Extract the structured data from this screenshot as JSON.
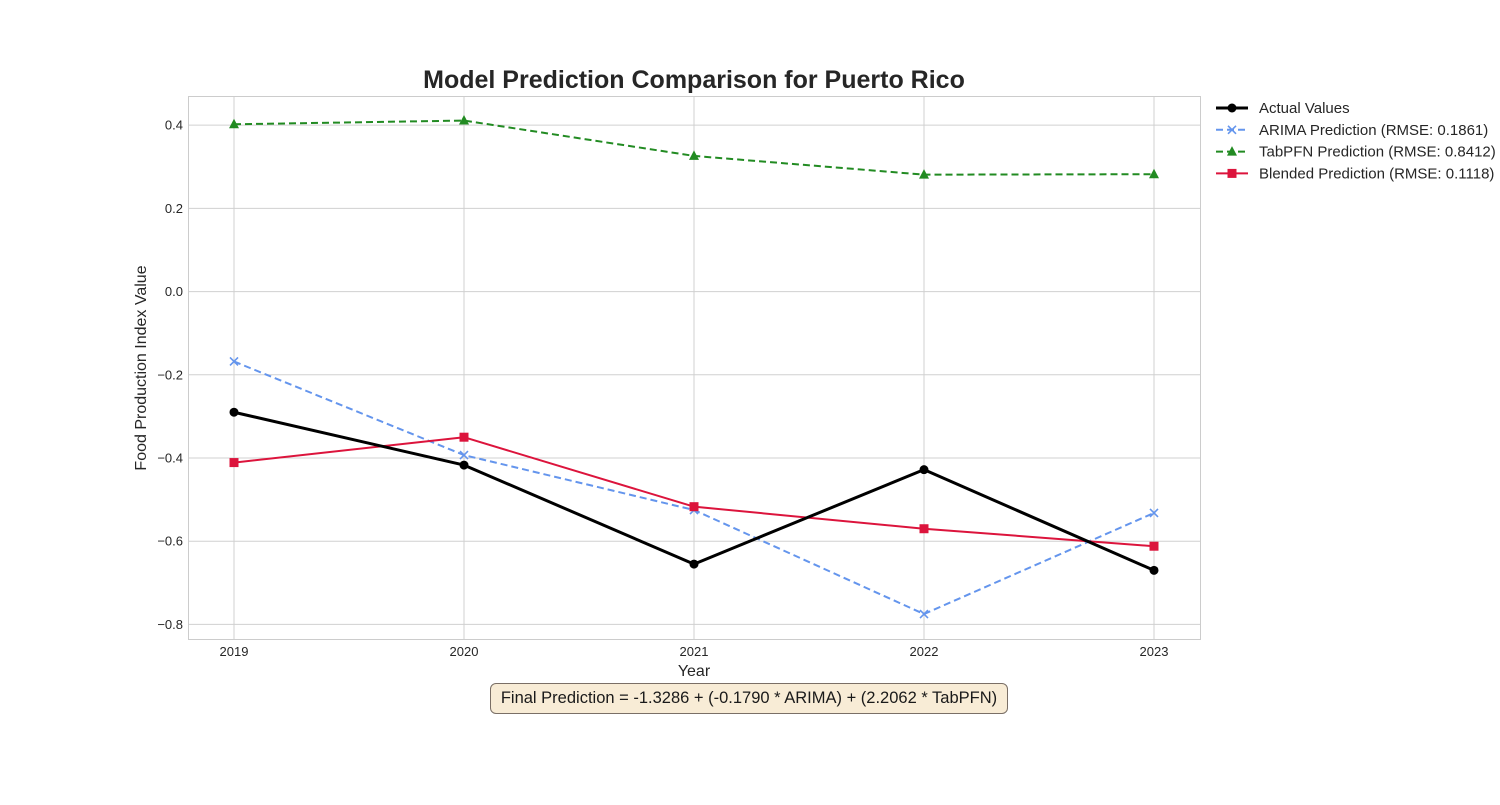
{
  "chart_data": {
    "type": "line",
    "title": "Model Prediction Comparison for Puerto Rico",
    "xlabel": "Year",
    "ylabel": "Food Production Index Value",
    "x": [
      "2019",
      "2020",
      "2021",
      "2022",
      "2023"
    ],
    "xlim": [
      2018.8,
      2023.2
    ],
    "ylim": [
      -0.835,
      0.47
    ],
    "yticks": [
      0.4,
      0.2,
      0.0,
      -0.2,
      -0.4,
      -0.6,
      -0.8
    ],
    "ytick_labels": [
      "0.4",
      "0.2",
      "0.0",
      "−0.2",
      "−0.4",
      "−0.6",
      "−0.8"
    ],
    "grid": true,
    "legend_position": "outside-top-right",
    "series": [
      {
        "name": "Actual Values",
        "values": [
          -0.29,
          -0.417,
          -0.655,
          -0.428,
          -0.67
        ],
        "color": "#000000",
        "dash": "solid",
        "marker": "circle"
      },
      {
        "name": "ARIMA Prediction (RMSE: 0.1861)",
        "values": [
          -0.168,
          -0.393,
          -0.525,
          -0.775,
          -0.532
        ],
        "color": "#6495ed",
        "dash": "dashed",
        "marker": "x"
      },
      {
        "name": "TabPFN Prediction (RMSE: 0.8412)",
        "values": [
          0.402,
          0.411,
          0.326,
          0.281,
          0.282
        ],
        "color": "#228b22",
        "dash": "dashed",
        "marker": "triangle"
      },
      {
        "name": "Blended Prediction (RMSE: 0.1118)",
        "values": [
          -0.411,
          -0.35,
          -0.517,
          -0.57,
          -0.612
        ],
        "color": "#dc143c",
        "dash": "solid",
        "marker": "square"
      }
    ],
    "annotation": "Final Prediction = -1.3286 + (-0.1790 * ARIMA) + (2.2062 * TabPFN)"
  }
}
